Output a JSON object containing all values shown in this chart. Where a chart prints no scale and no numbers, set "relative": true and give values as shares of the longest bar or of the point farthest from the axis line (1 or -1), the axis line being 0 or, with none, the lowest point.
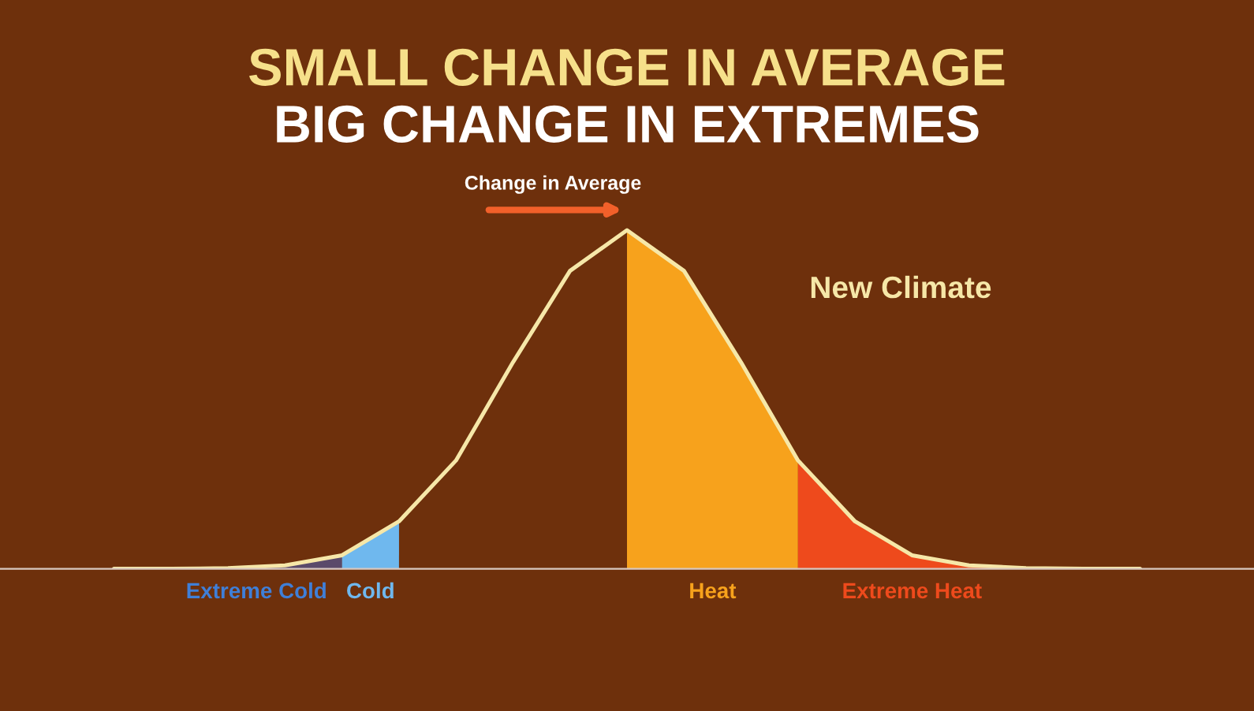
{
  "chart_data": {
    "type": "area",
    "relative": true,
    "title": "SMALL CHANGE IN AVERAGE",
    "subtitle": "BIG CHANGE IN EXTREMES",
    "categories": [
      null,
      null,
      null,
      null,
      null,
      null,
      null,
      null,
      null,
      null,
      null,
      null,
      null,
      null,
      null,
      null,
      null,
      null,
      null
    ],
    "series": [
      {
        "name": "Extreme Cold",
        "color": "#5a4a6a",
        "values": [
          null,
          0,
          0.002,
          0.01,
          0.04,
          null,
          null,
          null,
          null,
          null,
          null,
          null,
          null,
          null,
          null,
          null,
          null,
          null,
          null
        ]
      },
      {
        "name": "Cold",
        "color": "#6fb8ee",
        "values": [
          null,
          null,
          null,
          null,
          0.04,
          0.14,
          null,
          null,
          null,
          null,
          null,
          null,
          null,
          null,
          null,
          null,
          null,
          null,
          null
        ]
      },
      {
        "name": "Heat",
        "color": "#f7a21c",
        "values": [
          null,
          null,
          null,
          null,
          null,
          null,
          null,
          null,
          null,
          1,
          0.88,
          0.61,
          0.32,
          null,
          null,
          null,
          null,
          null,
          null
        ]
      },
      {
        "name": "Extreme Heat",
        "color": "#ee4a1c",
        "values": [
          null,
          null,
          null,
          null,
          null,
          null,
          null,
          null,
          null,
          null,
          null,
          null,
          0.32,
          0.14,
          0.04,
          0.01,
          0.002,
          null,
          null
        ]
      },
      {
        "type": "line",
        "color": "#f6e7a8",
        "values": [
          0,
          0,
          0.002,
          0.01,
          0.04,
          0.14,
          0.32,
          0.61,
          0.88,
          1,
          0.88,
          0.61,
          0.32,
          0.14,
          0.04,
          0.01,
          0.002,
          0,
          0
        ]
      }
    ],
    "annotations": [
      "Change in Average",
      "New Climate"
    ],
    "legend": false
  }
}
